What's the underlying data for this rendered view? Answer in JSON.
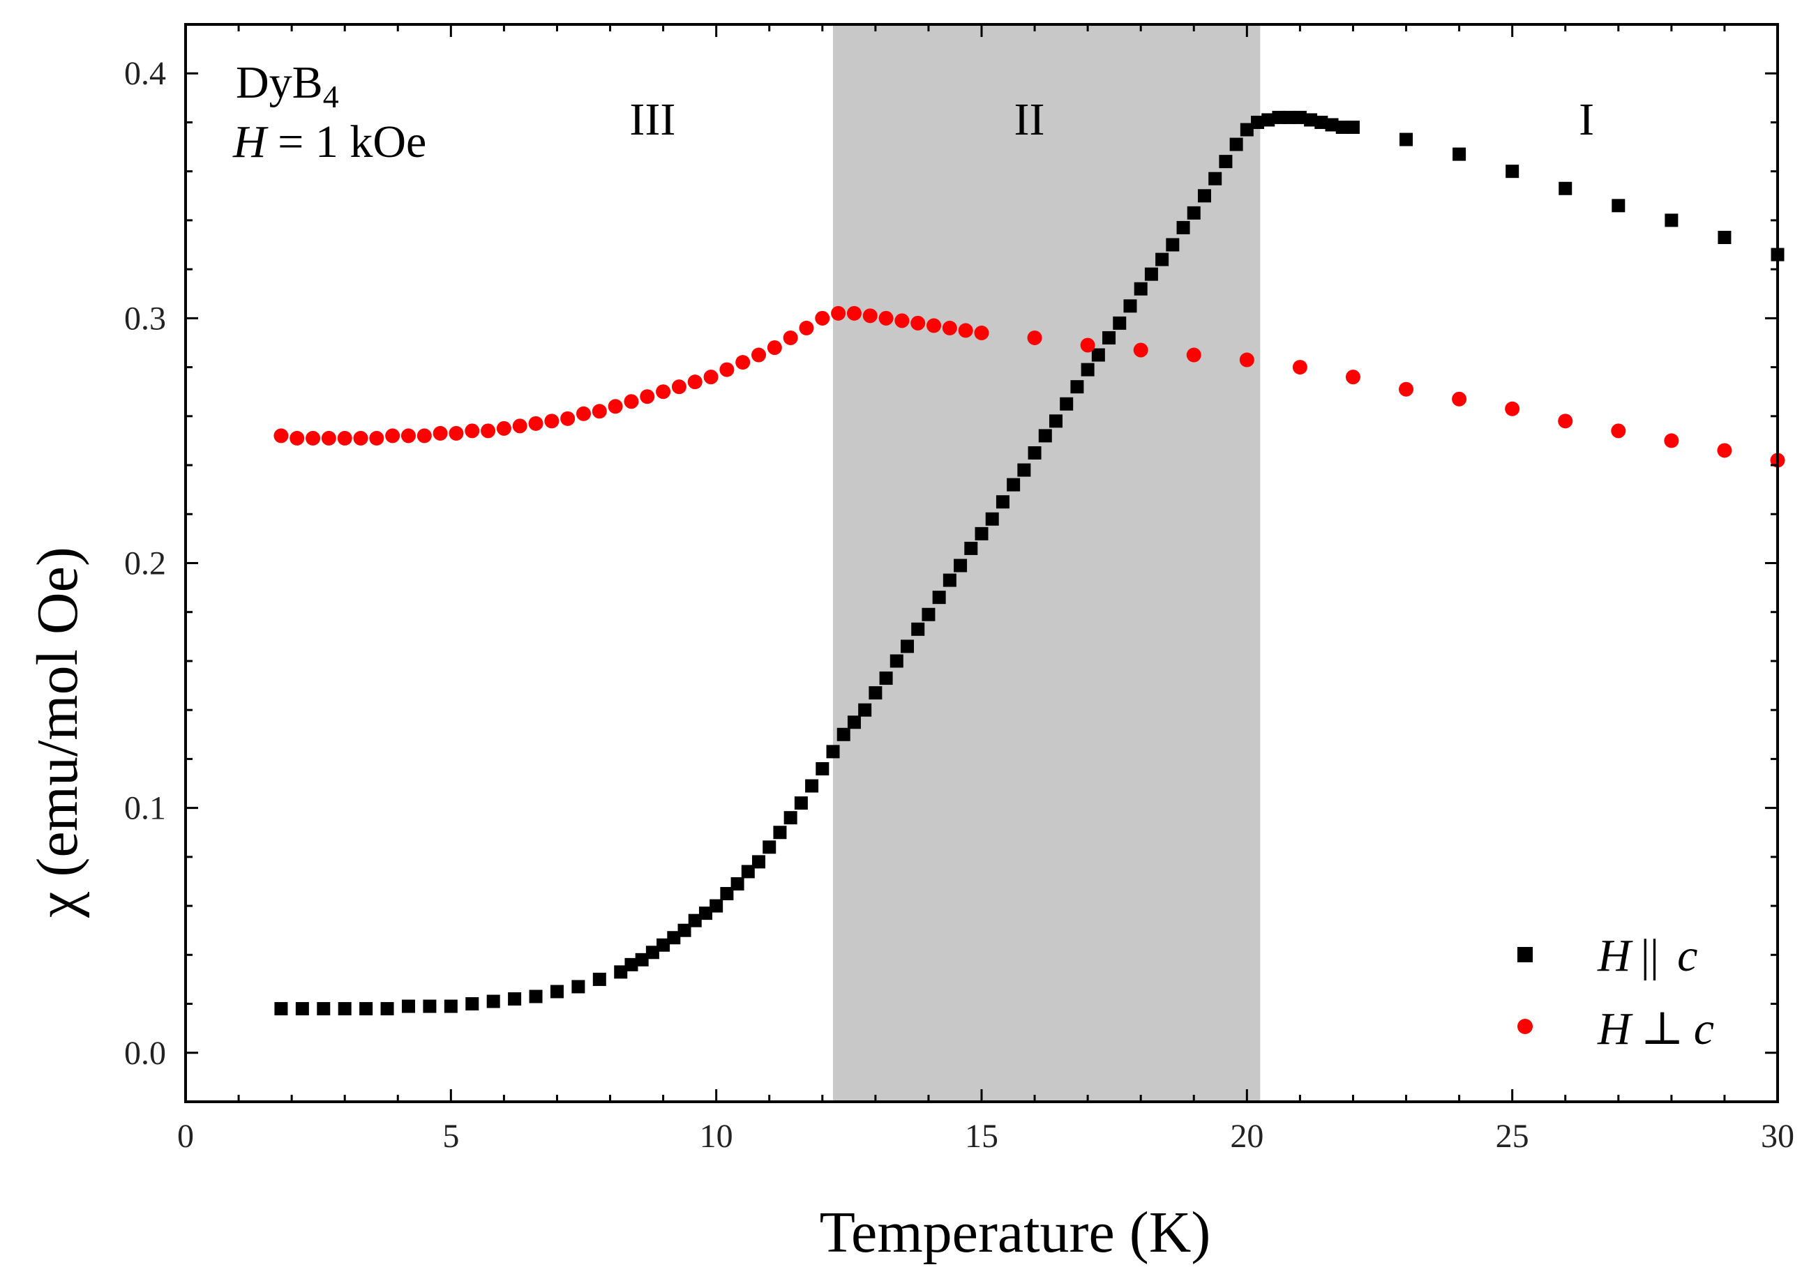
{
  "chart_data": {
    "type": "scatter",
    "title": "",
    "xlabel": "Temperature (K)",
    "ylabel": "χ (emu/mol Oe)",
    "xlim": [
      0,
      30
    ],
    "ylim": [
      -0.02,
      0.42
    ],
    "xticks": [
      "0",
      "5",
      "10",
      "15",
      "20",
      "25",
      "30"
    ],
    "yticks": [
      "0.0",
      "0.1",
      "0.2",
      "0.3",
      "0.4"
    ],
    "grid": false,
    "legend_position": "bottom-right",
    "annotation": {
      "compound": "DyB",
      "compound_sub": "4",
      "field_var": "H",
      "field_rest": " = 1 kOe"
    },
    "shaded_region": {
      "x_start": 12.2,
      "x_end": 20.25,
      "color": "#c8c8c8"
    },
    "regions": [
      {
        "label": "III",
        "x": 8.8
      },
      {
        "label": "II",
        "x": 15.9
      },
      {
        "label": "I",
        "x": 26.4
      }
    ],
    "legend": [
      {
        "series": "H || c",
        "var": "H",
        "rel": "||",
        "axis": "c",
        "marker": "square",
        "color": "#000000"
      },
      {
        "series": "H ⊥ c",
        "var": "H",
        "rel": "⊥",
        "axis": "c",
        "marker": "circle",
        "color": "#ff0000"
      }
    ],
    "series": [
      {
        "name": "H || c",
        "marker": "square",
        "color": "#000000",
        "x": [
          1.8,
          2.2,
          2.6,
          3.0,
          3.4,
          3.8,
          4.2,
          4.6,
          5.0,
          5.4,
          5.8,
          6.2,
          6.6,
          7.0,
          7.4,
          7.8,
          8.2,
          8.4,
          8.6,
          8.8,
          9.0,
          9.2,
          9.4,
          9.6,
          9.8,
          10.0,
          10.2,
          10.4,
          10.6,
          10.8,
          11.0,
          11.2,
          11.4,
          11.6,
          11.8,
          12.0,
          12.2,
          12.4,
          12.6,
          12.8,
          13.0,
          13.2,
          13.4,
          13.6,
          13.8,
          14.0,
          14.2,
          14.4,
          14.6,
          14.8,
          15.0,
          15.2,
          15.4,
          15.6,
          15.8,
          16.0,
          16.2,
          16.4,
          16.6,
          16.8,
          17.0,
          17.2,
          17.4,
          17.6,
          17.8,
          18.0,
          18.2,
          18.4,
          18.6,
          18.8,
          19.0,
          19.2,
          19.4,
          19.6,
          19.8,
          20.0,
          20.2,
          20.4,
          20.6,
          20.8,
          21.0,
          21.2,
          21.4,
          21.6,
          21.8,
          22.0,
          23.0,
          24.0,
          25.0,
          26.0,
          27.0,
          28.0,
          29.0,
          30.0
        ],
        "values": [
          0.018,
          0.018,
          0.018,
          0.018,
          0.018,
          0.018,
          0.019,
          0.019,
          0.019,
          0.02,
          0.021,
          0.022,
          0.023,
          0.025,
          0.027,
          0.03,
          0.033,
          0.036,
          0.038,
          0.041,
          0.044,
          0.047,
          0.05,
          0.054,
          0.057,
          0.06,
          0.065,
          0.069,
          0.074,
          0.078,
          0.084,
          0.09,
          0.096,
          0.102,
          0.109,
          0.116,
          0.123,
          0.13,
          0.135,
          0.14,
          0.147,
          0.153,
          0.16,
          0.166,
          0.173,
          0.179,
          0.186,
          0.193,
          0.199,
          0.206,
          0.212,
          0.218,
          0.225,
          0.232,
          0.238,
          0.245,
          0.252,
          0.258,
          0.265,
          0.272,
          0.279,
          0.285,
          0.292,
          0.298,
          0.305,
          0.312,
          0.318,
          0.324,
          0.33,
          0.337,
          0.343,
          0.35,
          0.357,
          0.364,
          0.371,
          0.377,
          0.38,
          0.381,
          0.382,
          0.382,
          0.382,
          0.381,
          0.38,
          0.379,
          0.378,
          0.378,
          0.373,
          0.367,
          0.36,
          0.353,
          0.346,
          0.34,
          0.333,
          0.326
        ]
      },
      {
        "name": "H ⊥ c",
        "marker": "circle",
        "color": "#ff0000",
        "x": [
          1.8,
          2.1,
          2.4,
          2.7,
          3.0,
          3.3,
          3.6,
          3.9,
          4.2,
          4.5,
          4.8,
          5.1,
          5.4,
          5.7,
          6.0,
          6.3,
          6.6,
          6.9,
          7.2,
          7.5,
          7.8,
          8.1,
          8.4,
          8.7,
          9.0,
          9.3,
          9.6,
          9.9,
          10.2,
          10.5,
          10.8,
          11.1,
          11.4,
          11.7,
          12.0,
          12.3,
          12.6,
          12.9,
          13.2,
          13.5,
          13.8,
          14.1,
          14.4,
          14.7,
          15.0,
          16.0,
          17.0,
          18.0,
          19.0,
          20.0,
          21.0,
          22.0,
          23.0,
          24.0,
          25.0,
          26.0,
          27.0,
          28.0,
          29.0,
          30.0
        ],
        "values": [
          0.252,
          0.251,
          0.251,
          0.251,
          0.251,
          0.251,
          0.251,
          0.252,
          0.252,
          0.252,
          0.253,
          0.253,
          0.254,
          0.254,
          0.255,
          0.256,
          0.257,
          0.258,
          0.259,
          0.261,
          0.262,
          0.264,
          0.266,
          0.268,
          0.27,
          0.272,
          0.274,
          0.276,
          0.279,
          0.282,
          0.285,
          0.288,
          0.292,
          0.296,
          0.3,
          0.302,
          0.302,
          0.301,
          0.3,
          0.299,
          0.298,
          0.297,
          0.296,
          0.295,
          0.294,
          0.292,
          0.289,
          0.287,
          0.285,
          0.283,
          0.28,
          0.276,
          0.271,
          0.267,
          0.263,
          0.258,
          0.254,
          0.25,
          0.246,
          0.242
        ]
      }
    ]
  }
}
